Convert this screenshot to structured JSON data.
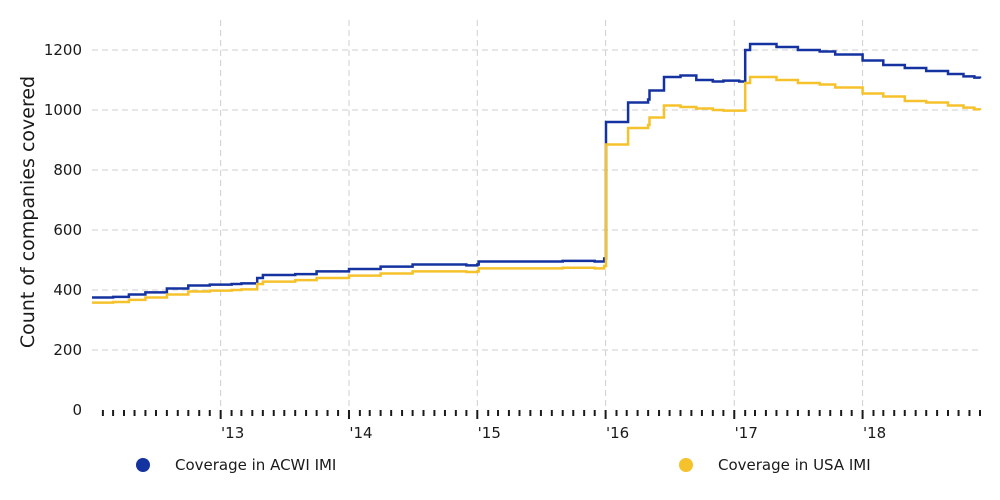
{
  "chart_data": {
    "type": "line",
    "title": "",
    "xlabel": "",
    "ylabel": "Count of companies covered",
    "xlim": [
      "2012-01-01",
      "2018-12-01"
    ],
    "ylim": [
      0,
      1300
    ],
    "yticks": [
      0,
      200,
      400,
      600,
      800,
      1000,
      1200
    ],
    "xticks": [
      {
        "label": "'13",
        "date": "2013-01-01"
      },
      {
        "label": "'14",
        "date": "2014-01-01"
      },
      {
        "label": "'15",
        "date": "2015-01-01"
      },
      {
        "label": "'16",
        "date": "2016-01-01"
      },
      {
        "label": "'17",
        "date": "2017-01-01"
      },
      {
        "label": "'18",
        "date": "2018-01-01"
      }
    ],
    "grid": true,
    "legend_position": "bottom",
    "series": [
      {
        "name": "Coverage in ACWI IMI",
        "color": "#1432a0",
        "points": [
          [
            "2012-01-01",
            375
          ],
          [
            "2012-03-01",
            377
          ],
          [
            "2012-04-15",
            385
          ],
          [
            "2012-06-01",
            392
          ],
          [
            "2012-08-01",
            405
          ],
          [
            "2012-10-01",
            415
          ],
          [
            "2012-12-01",
            418
          ],
          [
            "2013-02-01",
            420
          ],
          [
            "2013-03-01",
            422
          ],
          [
            "2013-04-15",
            440
          ],
          [
            "2013-05-01",
            450
          ],
          [
            "2013-08-01",
            453
          ],
          [
            "2013-10-01",
            462
          ],
          [
            "2014-01-01",
            470
          ],
          [
            "2014-04-01",
            478
          ],
          [
            "2014-07-01",
            485
          ],
          [
            "2014-10-01",
            485
          ],
          [
            "2014-12-01",
            482
          ],
          [
            "2015-01-01",
            485
          ],
          [
            "2015-01-05",
            495
          ],
          [
            "2015-06-01",
            495
          ],
          [
            "2015-09-01",
            497
          ],
          [
            "2015-12-01",
            495
          ],
          [
            "2015-12-28",
            505
          ],
          [
            "2016-01-02",
            960
          ],
          [
            "2016-03-01",
            960
          ],
          [
            "2016-03-05",
            1025
          ],
          [
            "2016-05-01",
            1035
          ],
          [
            "2016-05-05",
            1065
          ],
          [
            "2016-06-15",
            1110
          ],
          [
            "2016-08-01",
            1115
          ],
          [
            "2016-09-15",
            1100
          ],
          [
            "2016-11-01",
            1095
          ],
          [
            "2016-12-01",
            1098
          ],
          [
            "2017-01-15",
            1095
          ],
          [
            "2017-02-01",
            1200
          ],
          [
            "2017-02-15",
            1220
          ],
          [
            "2017-05-01",
            1210
          ],
          [
            "2017-07-01",
            1200
          ],
          [
            "2017-09-01",
            1195
          ],
          [
            "2017-10-15",
            1185
          ],
          [
            "2018-01-01",
            1165
          ],
          [
            "2018-03-01",
            1150
          ],
          [
            "2018-05-01",
            1140
          ],
          [
            "2018-07-01",
            1130
          ],
          [
            "2018-09-01",
            1120
          ],
          [
            "2018-10-15",
            1112
          ],
          [
            "2018-11-15",
            1108
          ],
          [
            "2018-12-01",
            1105
          ]
        ]
      },
      {
        "name": "Coverage in USA IMI",
        "color": "#f5c22c",
        "points": [
          [
            "2012-01-01",
            358
          ],
          [
            "2012-03-01",
            360
          ],
          [
            "2012-04-15",
            367
          ],
          [
            "2012-06-01",
            375
          ],
          [
            "2012-08-01",
            385
          ],
          [
            "2012-10-01",
            395
          ],
          [
            "2012-12-01",
            398
          ],
          [
            "2013-02-01",
            400
          ],
          [
            "2013-03-01",
            402
          ],
          [
            "2013-04-15",
            420
          ],
          [
            "2013-05-01",
            428
          ],
          [
            "2013-08-01",
            433
          ],
          [
            "2013-10-01",
            440
          ],
          [
            "2014-01-01",
            448
          ],
          [
            "2014-04-01",
            455
          ],
          [
            "2014-07-01",
            462
          ],
          [
            "2014-10-01",
            462
          ],
          [
            "2014-12-01",
            460
          ],
          [
            "2015-01-01",
            462
          ],
          [
            "2015-01-05",
            472
          ],
          [
            "2015-06-01",
            472
          ],
          [
            "2015-09-01",
            474
          ],
          [
            "2015-12-01",
            472
          ],
          [
            "2015-12-28",
            480
          ],
          [
            "2016-01-02",
            885
          ],
          [
            "2016-03-01",
            885
          ],
          [
            "2016-03-05",
            940
          ],
          [
            "2016-05-01",
            950
          ],
          [
            "2016-05-05",
            975
          ],
          [
            "2016-06-15",
            1015
          ],
          [
            "2016-08-01",
            1010
          ],
          [
            "2016-09-15",
            1005
          ],
          [
            "2016-11-01",
            1000
          ],
          [
            "2016-12-01",
            998
          ],
          [
            "2017-01-15",
            998
          ],
          [
            "2017-02-01",
            1090
          ],
          [
            "2017-02-15",
            1110
          ],
          [
            "2017-05-01",
            1100
          ],
          [
            "2017-07-01",
            1090
          ],
          [
            "2017-09-01",
            1085
          ],
          [
            "2017-10-15",
            1075
          ],
          [
            "2018-01-01",
            1055
          ],
          [
            "2018-03-01",
            1045
          ],
          [
            "2018-05-01",
            1030
          ],
          [
            "2018-07-01",
            1025
          ],
          [
            "2018-09-01",
            1015
          ],
          [
            "2018-10-15",
            1008
          ],
          [
            "2018-11-15",
            1002
          ],
          [
            "2018-12-01",
            1000
          ]
        ]
      }
    ]
  }
}
